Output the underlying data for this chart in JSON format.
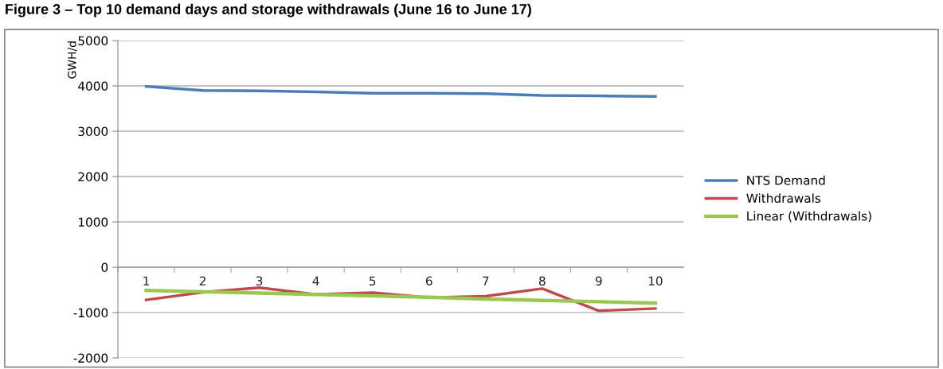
{
  "chart_data": {
    "type": "line",
    "title": "Figure 3 – Top 10 demand days and storage withdrawals (June 16 to June 17)",
    "ylabel": "GWH/d",
    "categories": [
      "1",
      "2",
      "3",
      "4",
      "5",
      "6",
      "7",
      "8",
      "9",
      "10"
    ],
    "series": [
      {
        "name": "NTS Demand",
        "color": "#4a7ebb",
        "values": [
          3990,
          3900,
          3890,
          3870,
          3840,
          3840,
          3830,
          3790,
          3780,
          3770
        ]
      },
      {
        "name": "Withdrawals",
        "color": "#be4b48",
        "values": [
          -720,
          -550,
          -450,
          -600,
          -560,
          -670,
          -640,
          -470,
          -960,
          -910
        ]
      },
      {
        "name": "Linear (Withdrawals)",
        "color": "#98c850",
        "values": [
          -510,
          -540,
          -570,
          -600,
          -630,
          -660,
          -700,
          -730,
          -760,
          -790
        ]
      }
    ],
    "ylim": [
      -2000,
      5000
    ],
    "yticks": [
      -2000,
      -1000,
      0,
      1000,
      2000,
      3000,
      4000,
      5000
    ],
    "grid": "y",
    "legend": "right",
    "marker": "none",
    "line_style": "solid"
  }
}
